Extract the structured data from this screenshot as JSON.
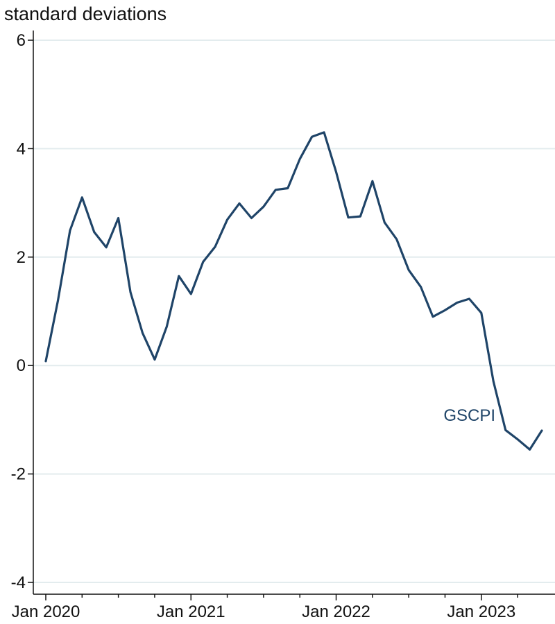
{
  "chart_data": {
    "type": "line",
    "title": "",
    "ylabel": "standard deviations",
    "xlabel": "",
    "ylim": [
      -4,
      6
    ],
    "xlim": [
      "2020-01",
      "2023-06"
    ],
    "yticks": [
      {
        "value": -4,
        "label": "-4"
      },
      {
        "value": -2,
        "label": "-2"
      },
      {
        "value": 0,
        "label": "0"
      },
      {
        "value": 2,
        "label": "2"
      },
      {
        "value": 4,
        "label": "4"
      },
      {
        "value": 6,
        "label": "6"
      }
    ],
    "xticks_labeled": [
      {
        "value": "2020-01",
        "label": "Jan 2020"
      },
      {
        "value": "2021-01",
        "label": "Jan 2021"
      },
      {
        "value": "2022-01",
        "label": "Jan 2022"
      },
      {
        "value": "2023-01",
        "label": "Jan 2023"
      }
    ],
    "xticks_minor": [
      "2020-04",
      "2020-07",
      "2020-10",
      "2021-04",
      "2021-07",
      "2021-10",
      "2022-04",
      "2022-07",
      "2022-10",
      "2023-04"
    ],
    "grid": "horizontal",
    "series": [
      {
        "name": "GSCPI",
        "color": "#1f4468",
        "x": [
          "2020-01",
          "2020-02",
          "2020-03",
          "2020-04",
          "2020-05",
          "2020-06",
          "2020-07",
          "2020-08",
          "2020-09",
          "2020-10",
          "2020-11",
          "2020-12",
          "2021-01",
          "2021-02",
          "2021-03",
          "2021-04",
          "2021-05",
          "2021-06",
          "2021-07",
          "2021-08",
          "2021-09",
          "2021-10",
          "2021-11",
          "2021-12",
          "2022-01",
          "2022-02",
          "2022-03",
          "2022-04",
          "2022-05",
          "2022-06",
          "2022-07",
          "2022-08",
          "2022-09",
          "2022-10",
          "2022-11",
          "2022-12",
          "2023-01",
          "2023-02",
          "2023-03",
          "2023-04",
          "2023-05",
          "2023-06"
        ],
        "values": [
          0.08,
          1.19,
          2.49,
          3.1,
          2.46,
          2.18,
          2.72,
          1.35,
          0.6,
          0.11,
          0.72,
          1.65,
          1.32,
          1.91,
          2.19,
          2.69,
          2.99,
          2.72,
          2.93,
          3.24,
          3.27,
          3.81,
          4.22,
          4.3,
          3.57,
          2.73,
          2.75,
          3.4,
          2.64,
          2.33,
          1.76,
          1.45,
          0.9,
          1.02,
          1.16,
          1.23,
          0.97,
          -0.29,
          -1.19,
          -1.36,
          -1.55,
          -1.2
        ]
      }
    ]
  }
}
